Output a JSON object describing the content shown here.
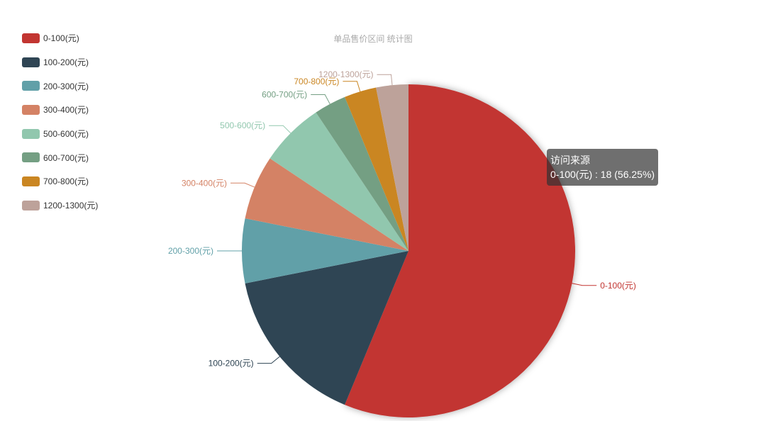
{
  "chart_data": {
    "type": "pie",
    "title": "单品售价区间 统计图",
    "legend_position": "left",
    "categories": [
      "0-100(元)",
      "100-200(元)",
      "200-300(元)",
      "300-400(元)",
      "500-600(元)",
      "600-700(元)",
      "700-800(元)",
      "1200-1300(元)"
    ],
    "values": [
      18,
      5,
      2,
      2,
      2,
      1,
      1,
      1
    ],
    "colors": [
      "#c23531",
      "#2f4554",
      "#61a0a8",
      "#d48265",
      "#91c7ae",
      "#749f83",
      "#ca8622",
      "#bda29a"
    ]
  },
  "tooltip": {
    "series_name": "访问来源",
    "line": "0-100(元) : 18 (56.25%)"
  }
}
